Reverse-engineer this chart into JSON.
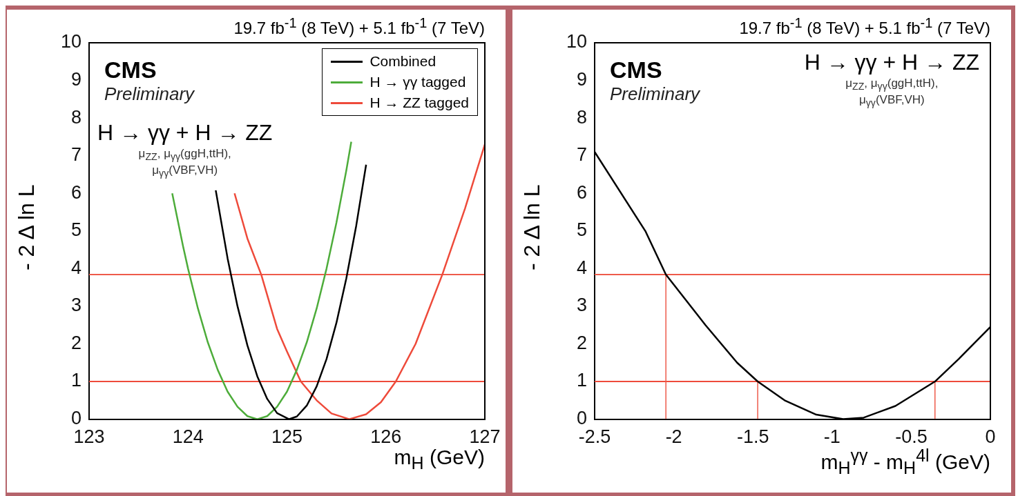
{
  "chart_data": [
    {
      "type": "line",
      "title": "19.7 fb$^{-1}$ (8 TeV) +  5.1 fb$^{-1}$ (7 TeV)",
      "xlabel": "m$_{H}$ (GeV)",
      "ylabel": "- 2 Δ ln L",
      "annotations": [
        "CMS",
        "Preliminary",
        "H → γγ + H → ZZ",
        "μ$_{ZZ}$, μ$_{γγ}$(ggH,ttH),",
        "μ$_{γγ}$(VBF,VH)"
      ],
      "xlim": [
        123,
        127
      ],
      "ylim": [
        0,
        10
      ],
      "xticks": [
        123,
        124,
        125,
        126,
        127
      ],
      "yticks": [
        0,
        1,
        2,
        3,
        4,
        5,
        6,
        7,
        8,
        9,
        10
      ],
      "grid": false,
      "legend": "top right",
      "ref_lines": [
        {
          "axis": "y",
          "value": 3.84,
          "color": "#ee5a4a"
        },
        {
          "axis": "y",
          "value": 1,
          "color": "#ee4a3a"
        }
      ],
      "series": [
        {
          "name": "Combined",
          "color": "#000000",
          "x": [
            124.28,
            124.4,
            124.5,
            124.6,
            124.7,
            124.8,
            124.9,
            125.02,
            125.1,
            125.2,
            125.3,
            125.4,
            125.5,
            125.6,
            125.7,
            125.8
          ],
          "values": [
            6.08,
            4.27,
            3.0,
            1.96,
            1.14,
            0.54,
            0.16,
            0,
            0.07,
            0.36,
            0.87,
            1.6,
            2.56,
            3.74,
            5.14,
            6.76
          ]
        },
        {
          "name": "H → γγ tagged",
          "color": "#4dac3a",
          "x": [
            123.84,
            123.95,
            124.0,
            124.1,
            124.2,
            124.3,
            124.4,
            124.5,
            124.6,
            124.7,
            124.8,
            124.9,
            125.0,
            125.1,
            125.2,
            125.3,
            125.4,
            125.5,
            125.6,
            125.65
          ],
          "values": [
            6.0,
            4.59,
            4.0,
            2.94,
            2.04,
            1.31,
            0.73,
            0.33,
            0.08,
            0,
            0.08,
            0.33,
            0.73,
            1.31,
            2.04,
            2.94,
            4.0,
            5.22,
            6.61,
            7.37
          ]
        },
        {
          "name": "H → ZZ tagged",
          "color": "#ee4a3a",
          "x": [
            124.47,
            124.6,
            124.74,
            124.9,
            125.0,
            125.14,
            125.3,
            125.45,
            125.63,
            125.8,
            125.95,
            126.1,
            126.3,
            126.57,
            126.8,
            127.0
          ],
          "values": [
            6.0,
            4.8,
            3.84,
            2.4,
            1.8,
            1.0,
            0.5,
            0.15,
            0,
            0.13,
            0.45,
            1.0,
            2.0,
            3.84,
            5.6,
            7.3
          ]
        }
      ]
    },
    {
      "type": "line",
      "title": "19.7 fb$^{-1}$ (8 TeV) +  5.1 fb$^{-1}$ (7 TeV)",
      "xlabel": "m$_{H}$$^{γγ}$ - m$_{H}$$^{4l}$ (GeV)",
      "ylabel": "- 2 Δ ln L",
      "annotations": [
        "CMS",
        "Preliminary",
        "H → γγ + H → ZZ",
        "μ$_{ZZ}$, μ$_{γγ}$(ggH,ttH),",
        "μ$_{γγ}$(VBF,VH)"
      ],
      "xlim": [
        -2.5,
        0
      ],
      "ylim": [
        0,
        10
      ],
      "xticks": [
        -2.5,
        -2,
        -1.5,
        -1,
        -0.5,
        0
      ],
      "yticks": [
        0,
        1,
        2,
        3,
        4,
        5,
        6,
        7,
        8,
        9,
        10
      ],
      "grid": false,
      "legend": false,
      "ref_lines": [
        {
          "axis": "y",
          "value": 3.84,
          "color": "#ee5a4a"
        },
        {
          "axis": "y",
          "value": 1,
          "color": "#ee4a3a"
        }
      ],
      "series": [
        {
          "color": "#000000",
          "x": [
            -2.5,
            -2.18,
            -2.05,
            -1.8,
            -1.6,
            -1.47,
            -1.3,
            -1.1,
            -0.93,
            -0.8,
            -0.6,
            -0.35,
            -0.2,
            0
          ],
          "values": [
            7.1,
            5.0,
            3.84,
            2.5,
            1.5,
            1.0,
            0.5,
            0.12,
            0,
            0.04,
            0.35,
            1.0,
            1.6,
            2.45
          ]
        },
        {
          "color": "#ee5a4a",
          "x": [
            -2.05,
            -2.05
          ],
          "values": [
            0,
            3.84
          ]
        },
        {
          "color": "#ee5a4a",
          "x": [
            -1.47,
            -1.47
          ],
          "values": [
            0,
            1
          ]
        },
        {
          "color": "#ee5a4a",
          "x": [
            -0.35,
            -0.35
          ],
          "values": [
            0,
            1
          ]
        }
      ]
    }
  ]
}
